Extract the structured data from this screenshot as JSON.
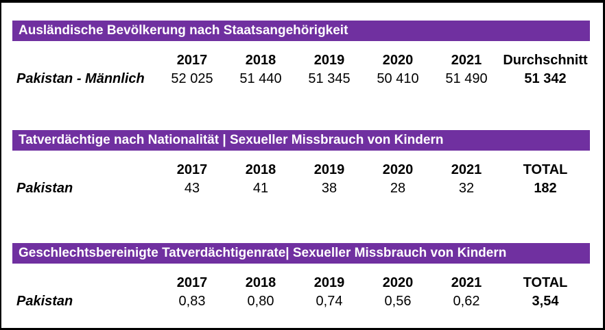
{
  "page": {
    "background_color": "#ffffff",
    "border_color": "#000000"
  },
  "colors": {
    "title_bar_background": "#7030A0",
    "title_bar_text": "#ffffff",
    "body_text": "#000000"
  },
  "tables": [
    {
      "title": "Ausländische Bevölkerung nach Staatsangehörigkeit",
      "columns": [
        "2017",
        "2018",
        "2019",
        "2020",
        "2021",
        "Durchschnitt"
      ],
      "row_label": "Pakistan - Männlich",
      "values": [
        "52 025",
        "51 440",
        "51 345",
        "50 410",
        "51 490"
      ],
      "summary": "51 342"
    },
    {
      "title": "Tatverdächtige nach Nationalität | Sexueller Missbrauch von Kindern",
      "columns": [
        "2017",
        "2018",
        "2019",
        "2020",
        "2021",
        "TOTAL"
      ],
      "row_label": "Pakistan",
      "values": [
        "43",
        "41",
        "38",
        "28",
        "32"
      ],
      "summary": "182"
    },
    {
      "title": "Geschlechtsbereinigte Tatverdächtigenrate| Sexueller Missbrauch von Kindern",
      "columns": [
        "2017",
        "2018",
        "2019",
        "2020",
        "2021",
        "TOTAL"
      ],
      "row_label": "Pakistan",
      "values": [
        "0,83",
        "0,80",
        "0,74",
        "0,56",
        "0,62"
      ],
      "summary": "3,54"
    }
  ]
}
